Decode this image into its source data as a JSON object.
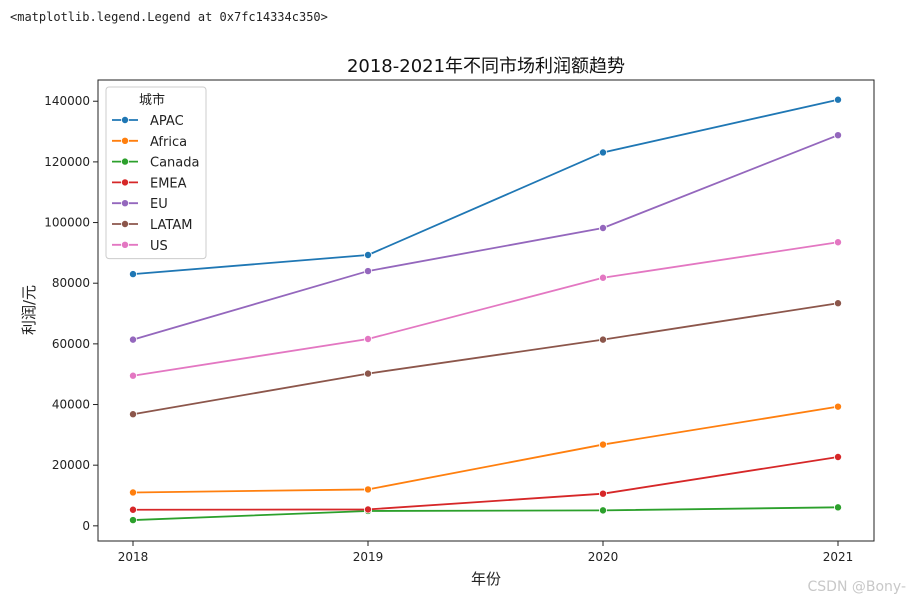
{
  "output_text": "<matplotlib.legend.Legend at 0x7fc14334c350>",
  "watermark": "CSDN @Bony-",
  "chart_data": {
    "type": "line",
    "title": "2018-2021年不同市场利润额趋势",
    "xlabel": "年份",
    "ylabel": "利润/元",
    "categories": [
      "2018",
      "2019",
      "2020",
      "2021"
    ],
    "ylim": [
      -5000,
      147000
    ],
    "yticks": [
      0,
      20000,
      40000,
      60000,
      80000,
      100000,
      120000,
      140000
    ],
    "ytick_labels": [
      "0",
      "20000",
      "40000",
      "60000",
      "80000",
      "100000",
      "120000",
      "140000"
    ],
    "legend_title": "城市",
    "legend_position": "top-left",
    "series": [
      {
        "name": "APAC",
        "color": "#1f77b4",
        "values": [
          83000,
          89300,
          123100,
          140500
        ]
      },
      {
        "name": "Africa",
        "color": "#ff7f0e",
        "values": [
          11000,
          12000,
          26800,
          39300
        ]
      },
      {
        "name": "Canada",
        "color": "#2ca02c",
        "values": [
          1900,
          4900,
          5100,
          6100
        ]
      },
      {
        "name": "EMEA",
        "color": "#d62728",
        "values": [
          5300,
          5400,
          10600,
          22700
        ]
      },
      {
        "name": "EU",
        "color": "#9467bd",
        "values": [
          61400,
          84000,
          98200,
          128800
        ]
      },
      {
        "name": "LATAM",
        "color": "#8c564b",
        "values": [
          36800,
          50200,
          61400,
          73400
        ]
      },
      {
        "name": "US",
        "color": "#e377c2",
        "values": [
          49500,
          61600,
          81800,
          93500
        ]
      }
    ]
  }
}
